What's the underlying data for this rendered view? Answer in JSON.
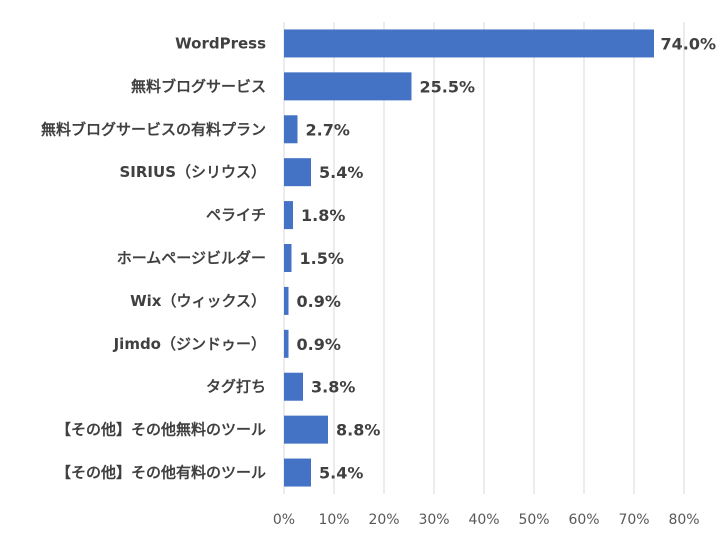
{
  "colors": {
    "bar": "#4472C4",
    "grid": "#D9D9D9",
    "text": "#404040"
  },
  "chart_data": {
    "type": "bar",
    "orientation": "horizontal",
    "categories": [
      "WordPress",
      "無料ブログサービス",
      "無料ブログサービスの有料プラン",
      "SIRIUS（シリウス）",
      "ペライチ",
      "ホームページビルダー",
      "Wix（ウィックス）",
      "Jimdo（ジンドゥー）",
      "タグ打ち",
      "【その他】その他無料のツール",
      "【その他】その他有料のツール"
    ],
    "values": [
      74.0,
      25.5,
      2.7,
      5.4,
      1.8,
      1.5,
      0.9,
      0.9,
      3.8,
      8.8,
      5.4
    ],
    "value_labels": [
      "74.0%",
      "25.5%",
      "2.7%",
      "5.4%",
      "1.8%",
      "1.5%",
      "0.9%",
      "0.9%",
      "3.8%",
      "8.8%",
      "5.4%"
    ],
    "xlim": [
      0,
      80
    ],
    "xticks": [
      0,
      10,
      20,
      30,
      40,
      50,
      60,
      70,
      80
    ],
    "xtick_labels": [
      "0%",
      "10%",
      "20%",
      "30%",
      "40%",
      "50%",
      "60%",
      "70%",
      "80%"
    ],
    "grid": true,
    "legend": "none"
  }
}
